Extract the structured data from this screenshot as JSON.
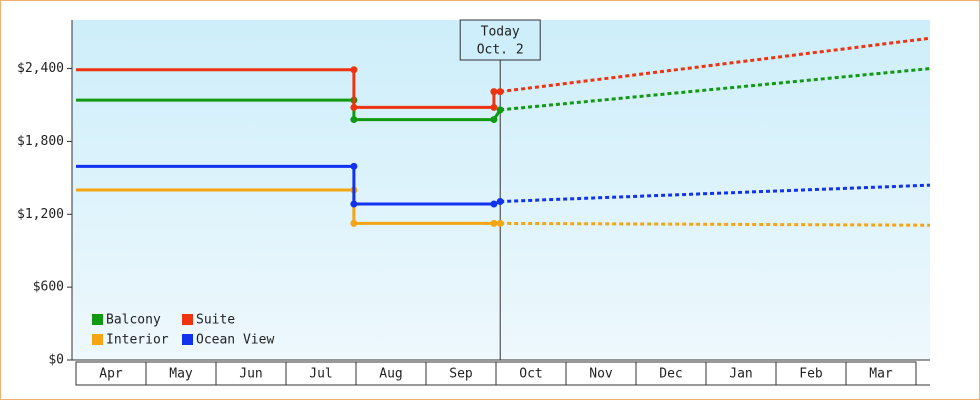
{
  "chart_data": {
    "type": "line",
    "categories": [
      "Apr",
      "May",
      "Jun",
      "Jul",
      "Aug",
      "Sep",
      "Oct",
      "Nov",
      "Dec",
      "Jan",
      "Feb",
      "Mar"
    ],
    "xlim": [
      0,
      12.2
    ],
    "ylim": [
      0,
      2800
    ],
    "yticks": [
      {
        "value": 0,
        "label": "$0"
      },
      {
        "value": 600,
        "label": "$600"
      },
      {
        "value": 1200,
        "label": "$1,200"
      },
      {
        "value": 1800,
        "label": "$1,800"
      },
      {
        "value": 2400,
        "label": "$2,400"
      }
    ],
    "today": {
      "x": 6.06,
      "label": "Today",
      "date": "Oct. 2"
    },
    "series": [
      {
        "name": "Balcony",
        "color": "#119911",
        "x": [
          0,
          3.97,
          3.97,
          5.97,
          6.06
        ],
        "values": [
          2140,
          2140,
          1980,
          1980,
          2060
        ],
        "forecast_x": [
          6.06,
          12.2
        ],
        "forecast_values": [
          2060,
          2400
        ]
      },
      {
        "name": "Suite",
        "color": "#ee3311",
        "x": [
          0,
          3.97,
          3.97,
          5.97,
          5.97,
          6.06
        ],
        "values": [
          2390,
          2390,
          2080,
          2080,
          2210,
          2210
        ],
        "forecast_x": [
          6.06,
          12.2
        ],
        "forecast_values": [
          2210,
          2650
        ]
      },
      {
        "name": "Interior",
        "color": "#f5a511",
        "x": [
          0,
          3.97,
          3.97,
          5.97,
          6.06
        ],
        "values": [
          1400,
          1400,
          1125,
          1125,
          1125
        ],
        "forecast_x": [
          6.06,
          12.2
        ],
        "forecast_values": [
          1125,
          1110
        ]
      },
      {
        "name": "Ocean View",
        "color": "#1133ee",
        "x": [
          0,
          3.97,
          3.97,
          5.97,
          6.06
        ],
        "values": [
          1595,
          1595,
          1285,
          1285,
          1305
        ],
        "forecast_x": [
          6.06,
          12.2
        ],
        "forecast_values": [
          1305,
          1440
        ]
      }
    ]
  }
}
